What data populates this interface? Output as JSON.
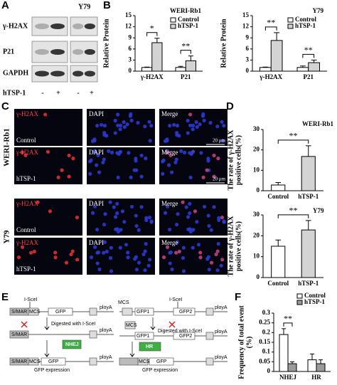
{
  "panel_labels": [
    "A",
    "B",
    "C",
    "D",
    "E",
    "F"
  ],
  "blot": {
    "rows": [
      "γ-H2AX",
      "P21",
      "GAPDH"
    ],
    "treatment": "hTSP-1",
    "lanes": [
      "-",
      "+",
      "-",
      "+"
    ],
    "header": "Y79"
  },
  "microscopy": {
    "rows": [
      "WERI-Rb1",
      "Y79"
    ],
    "channels": [
      "γ-H2AX",
      "DAPI",
      "Merge"
    ],
    "conditions": [
      "Control",
      "hTSP-1"
    ],
    "scale_bar": "20 μm"
  },
  "diagram": {
    "texts": [
      "I-SceI",
      "S/MAR",
      "MCS",
      "GFP",
      "ployA",
      "Digested with I-SceI",
      "S/MAR",
      "ployA",
      "NHEJ",
      "S/MAR",
      "MCS",
      "GFP",
      "GFP expression",
      "ployA",
      "I-SceI",
      "MCS",
      "GFP1",
      "GFP2",
      "ployA",
      "MCS",
      "GFP1",
      "Digested with I-SceI",
      "GFP2",
      "ployA",
      "HR",
      "MCS",
      "GFP",
      "GFP expression",
      "ployA"
    ]
  },
  "chart_data": [
    {
      "type": "bar",
      "title": "WERI-Rb1",
      "ylabel": "Relative Protein",
      "categories": [
        "γ-H2AX",
        "P21"
      ],
      "series": [
        {
          "name": "Control",
          "color": "#ffffff",
          "values": [
            1,
            1
          ],
          "errors": [
            0.1,
            0.3
          ]
        },
        {
          "name": "hTSP-1",
          "color": "#d3d3d3",
          "values": [
            7.7,
            2.8
          ],
          "errors": [
            1.2,
            1.3
          ]
        }
      ],
      "ylim": [
        0,
        15
      ],
      "yticks": [
        0,
        3,
        6,
        9,
        12,
        15
      ],
      "annotations": [
        "*",
        "**"
      ]
    },
    {
      "type": "bar",
      "title": "Y79",
      "ylabel": "Relative Protein",
      "categories": [
        "γ-H2AX",
        "P21"
      ],
      "series": [
        {
          "name": "Control",
          "color": "#ffffff",
          "values": [
            1,
            1
          ],
          "errors": [
            0.1,
            0.4
          ]
        },
        {
          "name": "hTSP-1",
          "color": "#d3d3d3",
          "values": [
            8.3,
            2.3
          ],
          "errors": [
            2.1,
            0.7
          ]
        }
      ],
      "ylim": [
        0,
        15
      ],
      "yticks": [
        0,
        3,
        6,
        9,
        12,
        15
      ],
      "annotations": [
        "**",
        "**"
      ]
    },
    {
      "type": "bar",
      "title": "WERI-Rb1",
      "ylabel": [
        "The rate of γ-H2AX",
        "positive cells(%)"
      ],
      "categories": [
        "Control",
        "hTSP-1"
      ],
      "values": [
        2.8,
        16.8
      ],
      "errors": [
        1.2,
        5.2
      ],
      "colors": [
        "#ffffff",
        "#d3d3d3"
      ],
      "ylim": [
        0,
        30
      ],
      "yticks": [
        0,
        10,
        20,
        30
      ],
      "annotations": [
        "**"
      ]
    },
    {
      "type": "bar",
      "title": "Y79",
      "ylabel": [
        "The rate of γ-H2AX",
        "positive cells(%)"
      ],
      "categories": [
        "Control",
        "hTSP-1"
      ],
      "values": [
        15,
        22.8
      ],
      "errors": [
        3,
        4.5
      ],
      "colors": [
        "#ffffff",
        "#d3d3d3"
      ],
      "ylim": [
        0,
        30
      ],
      "yticks": [
        0,
        10,
        20,
        30
      ],
      "annotations": [
        "**"
      ]
    },
    {
      "type": "bar",
      "ylabel": [
        "Frequency of total event",
        "(%)"
      ],
      "categories": [
        "NHEJ",
        "HR"
      ],
      "series": [
        {
          "name": "Control",
          "color": "#ffffff",
          "values": [
            0.19,
            0.06
          ],
          "errors": [
            0.03,
            0.03
          ]
        },
        {
          "name": "hTSP-1",
          "color": "#9a9a9a",
          "values": [
            0.04,
            0.04
          ],
          "errors": [
            0.01,
            0.02
          ]
        }
      ],
      "ylim": [
        0,
        0.3
      ],
      "yticks": [
        0,
        0.05,
        0.1,
        0.15,
        0.2,
        0.25,
        0.3
      ],
      "annotations": [
        "**"
      ]
    }
  ]
}
